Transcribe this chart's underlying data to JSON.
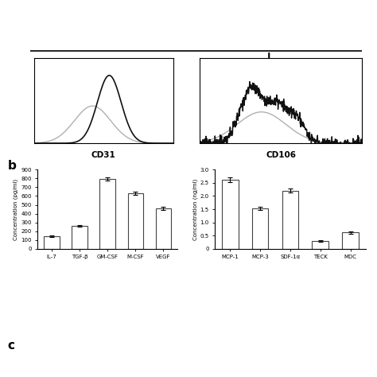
{
  "flow_labels": [
    "CD31",
    "CD106"
  ],
  "bar1_categories": [
    "IL-7",
    "TGF-β",
    "GM-CSF",
    "M-CSF",
    "VEGF"
  ],
  "bar1_values": [
    140,
    258,
    795,
    635,
    460
  ],
  "bar1_errors": [
    8,
    10,
    18,
    18,
    18
  ],
  "bar1_ylabel": "Concentration (pg/ml)",
  "bar1_yticks": [
    0,
    100,
    200,
    300,
    400,
    500,
    600,
    700,
    800,
    900
  ],
  "bar2_categories": [
    "MCP-1",
    "MCP-3",
    "SDF-1α",
    "TECK",
    "MDC"
  ],
  "bar2_values": [
    2.62,
    1.52,
    2.2,
    0.3,
    0.62
  ],
  "bar2_errors": [
    0.08,
    0.06,
    0.08,
    0.03,
    0.04
  ],
  "bar2_ylabel": "Concentration (ng/ml)",
  "bar2_yticks": [
    0,
    0.5,
    1.0,
    1.5,
    2.0,
    2.5,
    3.0
  ],
  "bar_color": "white",
  "bar_edgecolor": "#444444",
  "background_color": "white",
  "label_b": "b",
  "label_c": "c",
  "arrow_color": "black",
  "cd31_label": "CD31",
  "cd106_label": "CD106"
}
